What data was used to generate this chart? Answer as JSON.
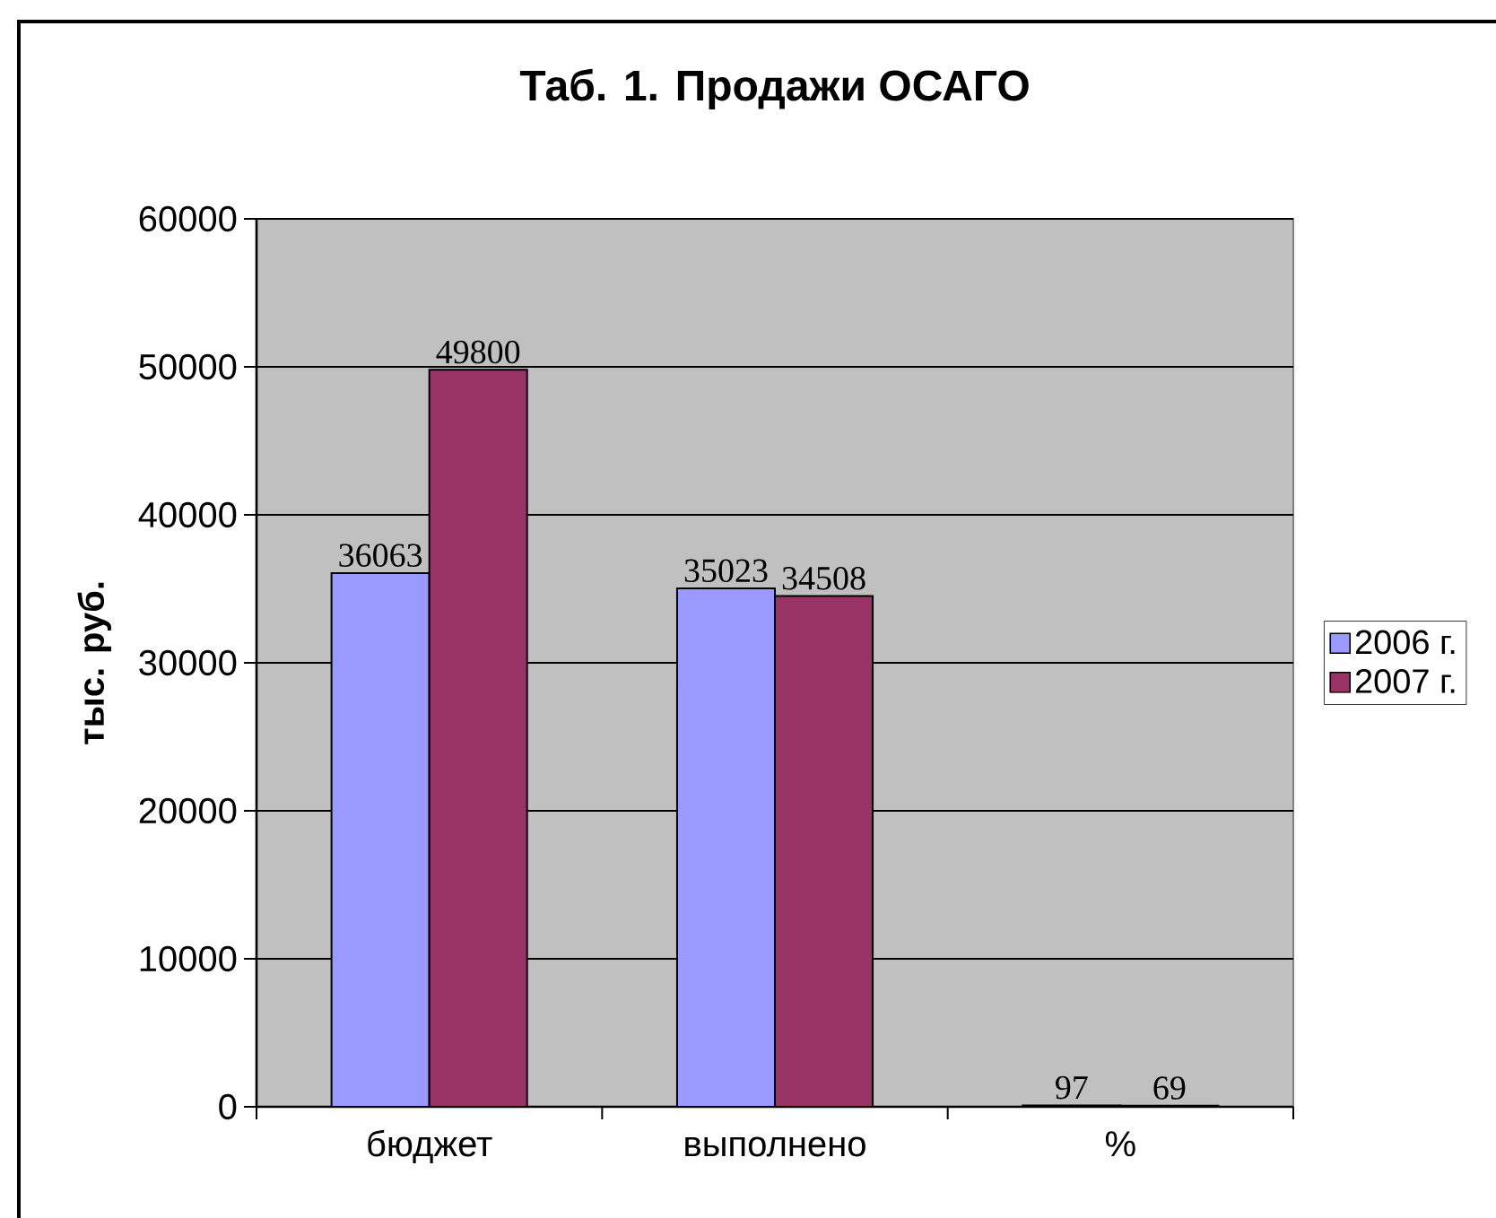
{
  "chart_data": {
    "type": "bar",
    "title": "Таб. 1. Продажи ОСАГО",
    "ylabel": "тыс. руб.",
    "categories": [
      "бюджет",
      "выполнено",
      "%"
    ],
    "series": [
      {
        "name": "2006 г.",
        "color": "#9999ff",
        "values": [
          36063,
          35023,
          97
        ]
      },
      {
        "name": "2007 г.",
        "color": "#993366",
        "values": [
          49800,
          34508,
          69
        ]
      }
    ],
    "ylim": [
      0,
      60000
    ],
    "yticks": [
      0,
      10000,
      20000,
      30000,
      40000,
      50000,
      60000
    ],
    "grid": "y",
    "legend": "right",
    "data_labels": true
  }
}
